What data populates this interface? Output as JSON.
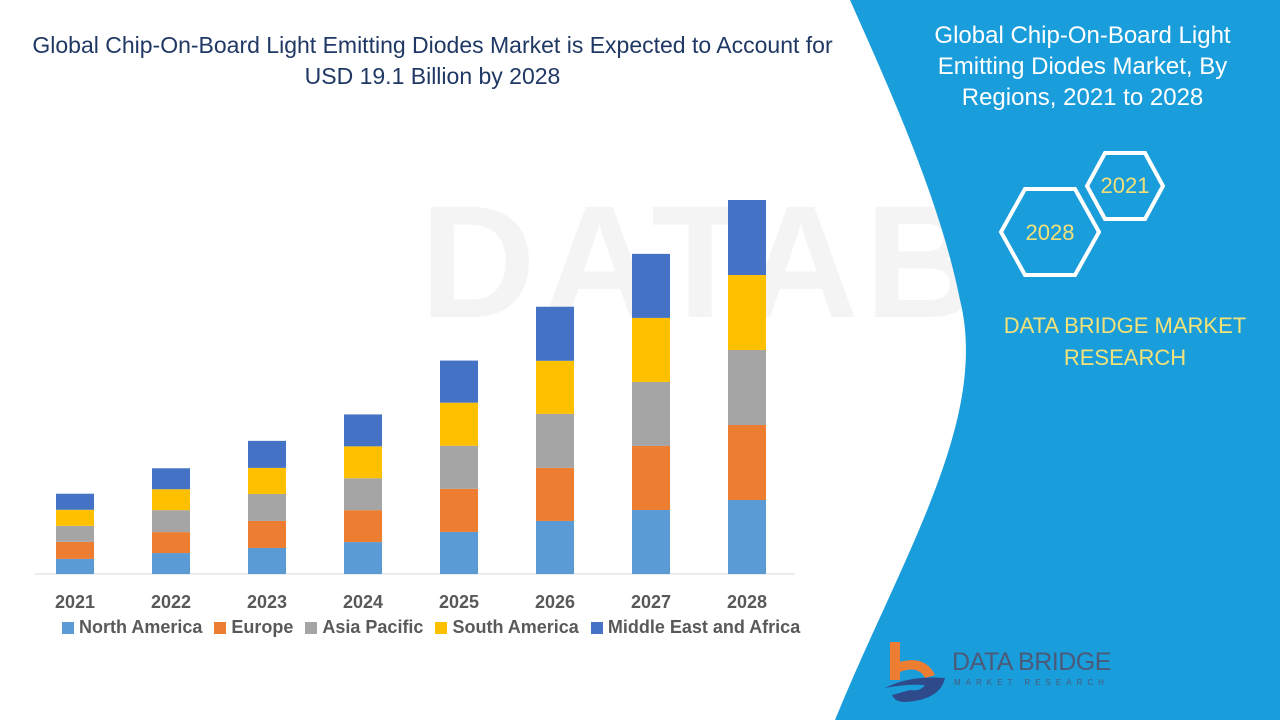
{
  "title": "Global Chip-On-Board Light Emitting Diodes Market is Expected to Account for USD 19.1 Billion by 2028",
  "side_panel": {
    "title": "Global Chip-On-Board Light Emitting Diodes Market, By Regions, 2021 to 2028",
    "hex_start": "2021",
    "hex_end": "2028",
    "brand": "DATA BRIDGE MARKET RESEARCH",
    "logo_name": "DATA BRIDGE",
    "logo_sub": "MARKET RESEARCH",
    "panel_color": "#1a9ddb"
  },
  "chart_data": {
    "type": "bar",
    "stacked": true,
    "title": "",
    "xlabel": "",
    "ylabel": "",
    "unit": "USD Billion (estimated, no axis printed)",
    "categories": [
      "2021",
      "2022",
      "2023",
      "2024",
      "2025",
      "2026",
      "2027",
      "2028"
    ],
    "legend_position": "bottom",
    "grid": false,
    "series": [
      {
        "name": "North America",
        "color": "#5b9bd5",
        "values": [
          0.77,
          1.07,
          1.33,
          1.63,
          2.15,
          2.71,
          3.27,
          3.78
        ]
      },
      {
        "name": "Europe",
        "color": "#ed7d31",
        "values": [
          0.87,
          1.07,
          1.38,
          1.63,
          2.2,
          2.71,
          3.27,
          3.83
        ]
      },
      {
        "name": "Asia Pacific",
        "color": "#a5a5a5",
        "values": [
          0.82,
          1.12,
          1.38,
          1.63,
          2.2,
          2.76,
          3.27,
          3.83
        ]
      },
      {
        "name": "South America",
        "color": "#ffc000",
        "values": [
          0.82,
          1.07,
          1.33,
          1.63,
          2.2,
          2.71,
          3.27,
          3.83
        ]
      },
      {
        "name": "Middle East and Africa",
        "color": "#4472c4",
        "values": [
          0.82,
          1.07,
          1.38,
          1.63,
          2.15,
          2.76,
          3.27,
          3.83
        ]
      }
    ]
  }
}
